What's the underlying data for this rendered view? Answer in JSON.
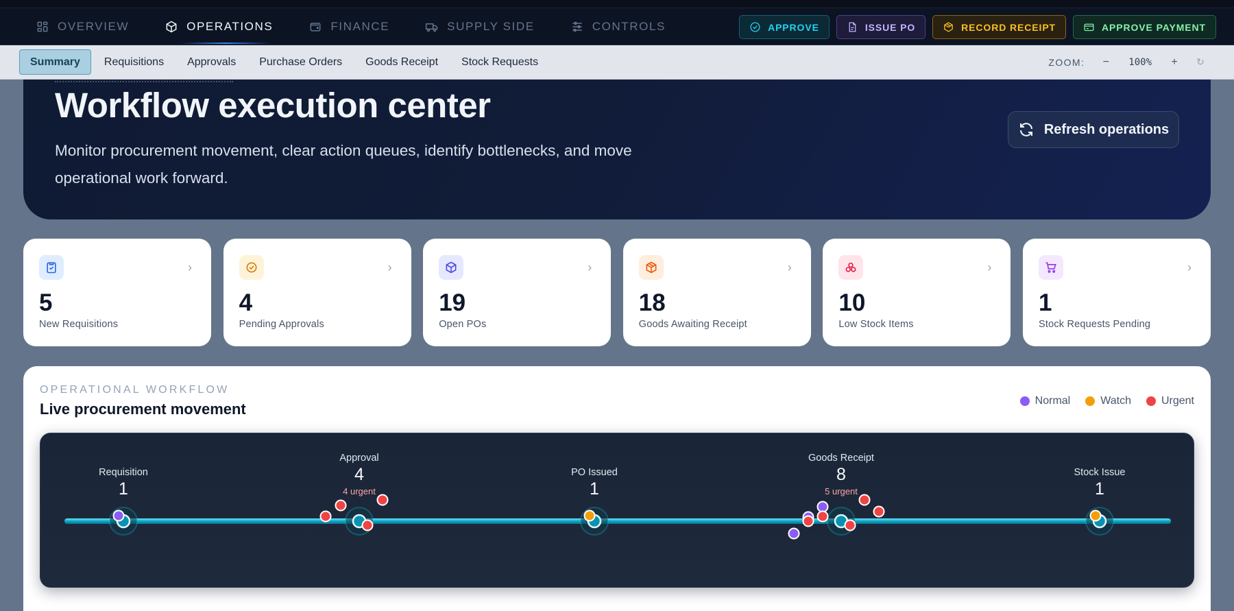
{
  "topnav": {
    "tabs": [
      {
        "label": "OVERVIEW",
        "icon": "grid-icon"
      },
      {
        "label": "OPERATIONS",
        "icon": "box-icon",
        "active": true
      },
      {
        "label": "FINANCE",
        "icon": "wallet-icon"
      },
      {
        "label": "SUPPLY SIDE",
        "icon": "truck-icon"
      },
      {
        "label": "CONTROLS",
        "icon": "sliders-icon"
      }
    ],
    "actions": [
      {
        "label": "APPROVE",
        "icon": "check-circle-icon"
      },
      {
        "label": "ISSUE PO",
        "icon": "document-icon"
      },
      {
        "label": "RECORD RECEIPT",
        "icon": "package-icon"
      },
      {
        "label": "APPROVE PAYMENT",
        "icon": "card-icon"
      }
    ]
  },
  "subnav": {
    "tabs": [
      "Summary",
      "Requisitions",
      "Approvals",
      "Purchase Orders",
      "Goods Receipt",
      "Stock Requests"
    ],
    "active": "Summary",
    "zoom_label": "ZOOM:",
    "zoom_out": "−",
    "zoom_value": "100%",
    "zoom_in": "+",
    "zoom_reset": "↻"
  },
  "hero": {
    "title": "Workflow execution center",
    "description": "Monitor procurement movement, clear action queues, identify bottlenecks, and move operational work forward.",
    "refresh_label": "Refresh operations"
  },
  "kpis": [
    {
      "value": "5",
      "label": "New Requisitions",
      "icon": "clipboard-check-icon",
      "color": "#2563eb",
      "bg": "#e0ecff"
    },
    {
      "value": "4",
      "label": "Pending Approvals",
      "icon": "check-circle-icon",
      "color": "#d97706",
      "bg": "#fef3d9"
    },
    {
      "value": "19",
      "label": "Open POs",
      "icon": "box-icon",
      "color": "#4f46e5",
      "bg": "#e6e8ff"
    },
    {
      "value": "18",
      "label": "Goods Awaiting Receipt",
      "icon": "package-icon",
      "color": "#ea580c",
      "bg": "#ffedde"
    },
    {
      "value": "10",
      "label": "Low Stock Items",
      "icon": "boxes-icon",
      "color": "#e11d48",
      "bg": "#ffe4ea"
    },
    {
      "value": "1",
      "label": "Stock Requests Pending",
      "icon": "cart-icon",
      "color": "#9333ea",
      "bg": "#f3e8ff"
    }
  ],
  "workflow": {
    "eyebrow": "OPERATIONAL WORKFLOW",
    "title": "Live procurement movement",
    "legend": [
      {
        "label": "Normal",
        "color": "#8b5cf6"
      },
      {
        "label": "Watch",
        "color": "#f59e0b"
      },
      {
        "label": "Urgent",
        "color": "#ef4444"
      }
    ],
    "stages": [
      {
        "label": "Requisition",
        "count": "1",
        "urgent": ""
      },
      {
        "label": "Approval",
        "count": "4",
        "urgent": "4 urgent"
      },
      {
        "label": "PO Issued",
        "count": "1",
        "urgent": ""
      },
      {
        "label": "Goods Receipt",
        "count": "8",
        "urgent": "5 urgent"
      },
      {
        "label": "Stock Issue",
        "count": "1",
        "urgent": ""
      }
    ]
  }
}
